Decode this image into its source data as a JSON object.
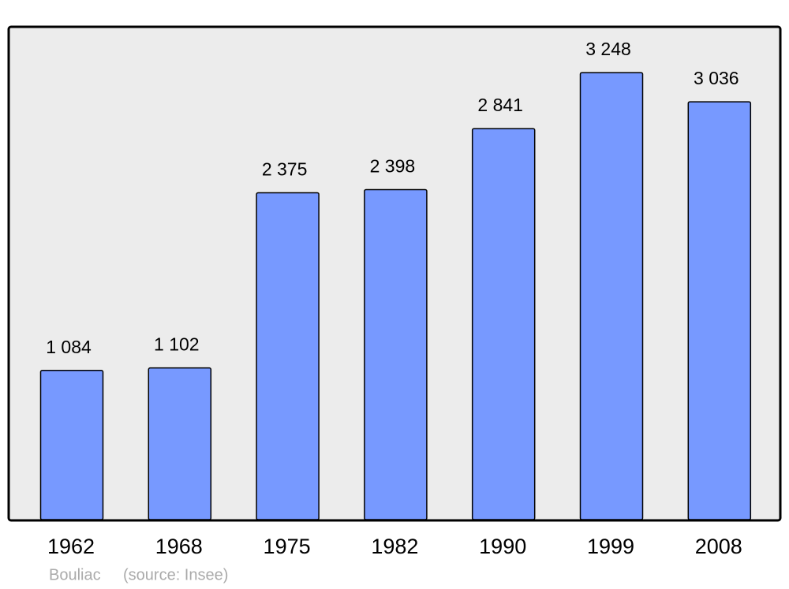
{
  "chart_data": {
    "type": "bar",
    "categories": [
      "1962",
      "1968",
      "1975",
      "1982",
      "1990",
      "1999",
      "2008"
    ],
    "values": [
      1084,
      1102,
      2375,
      2398,
      2841,
      3248,
      3036
    ],
    "value_labels": [
      "1 084",
      "1 102",
      "2 375",
      "2 398",
      "2 841",
      "3 248",
      "3 036"
    ],
    "color": "#7799ff",
    "ylim": [
      0,
      3575
    ],
    "note": "Bouliac",
    "source": "(source: Insee)"
  }
}
